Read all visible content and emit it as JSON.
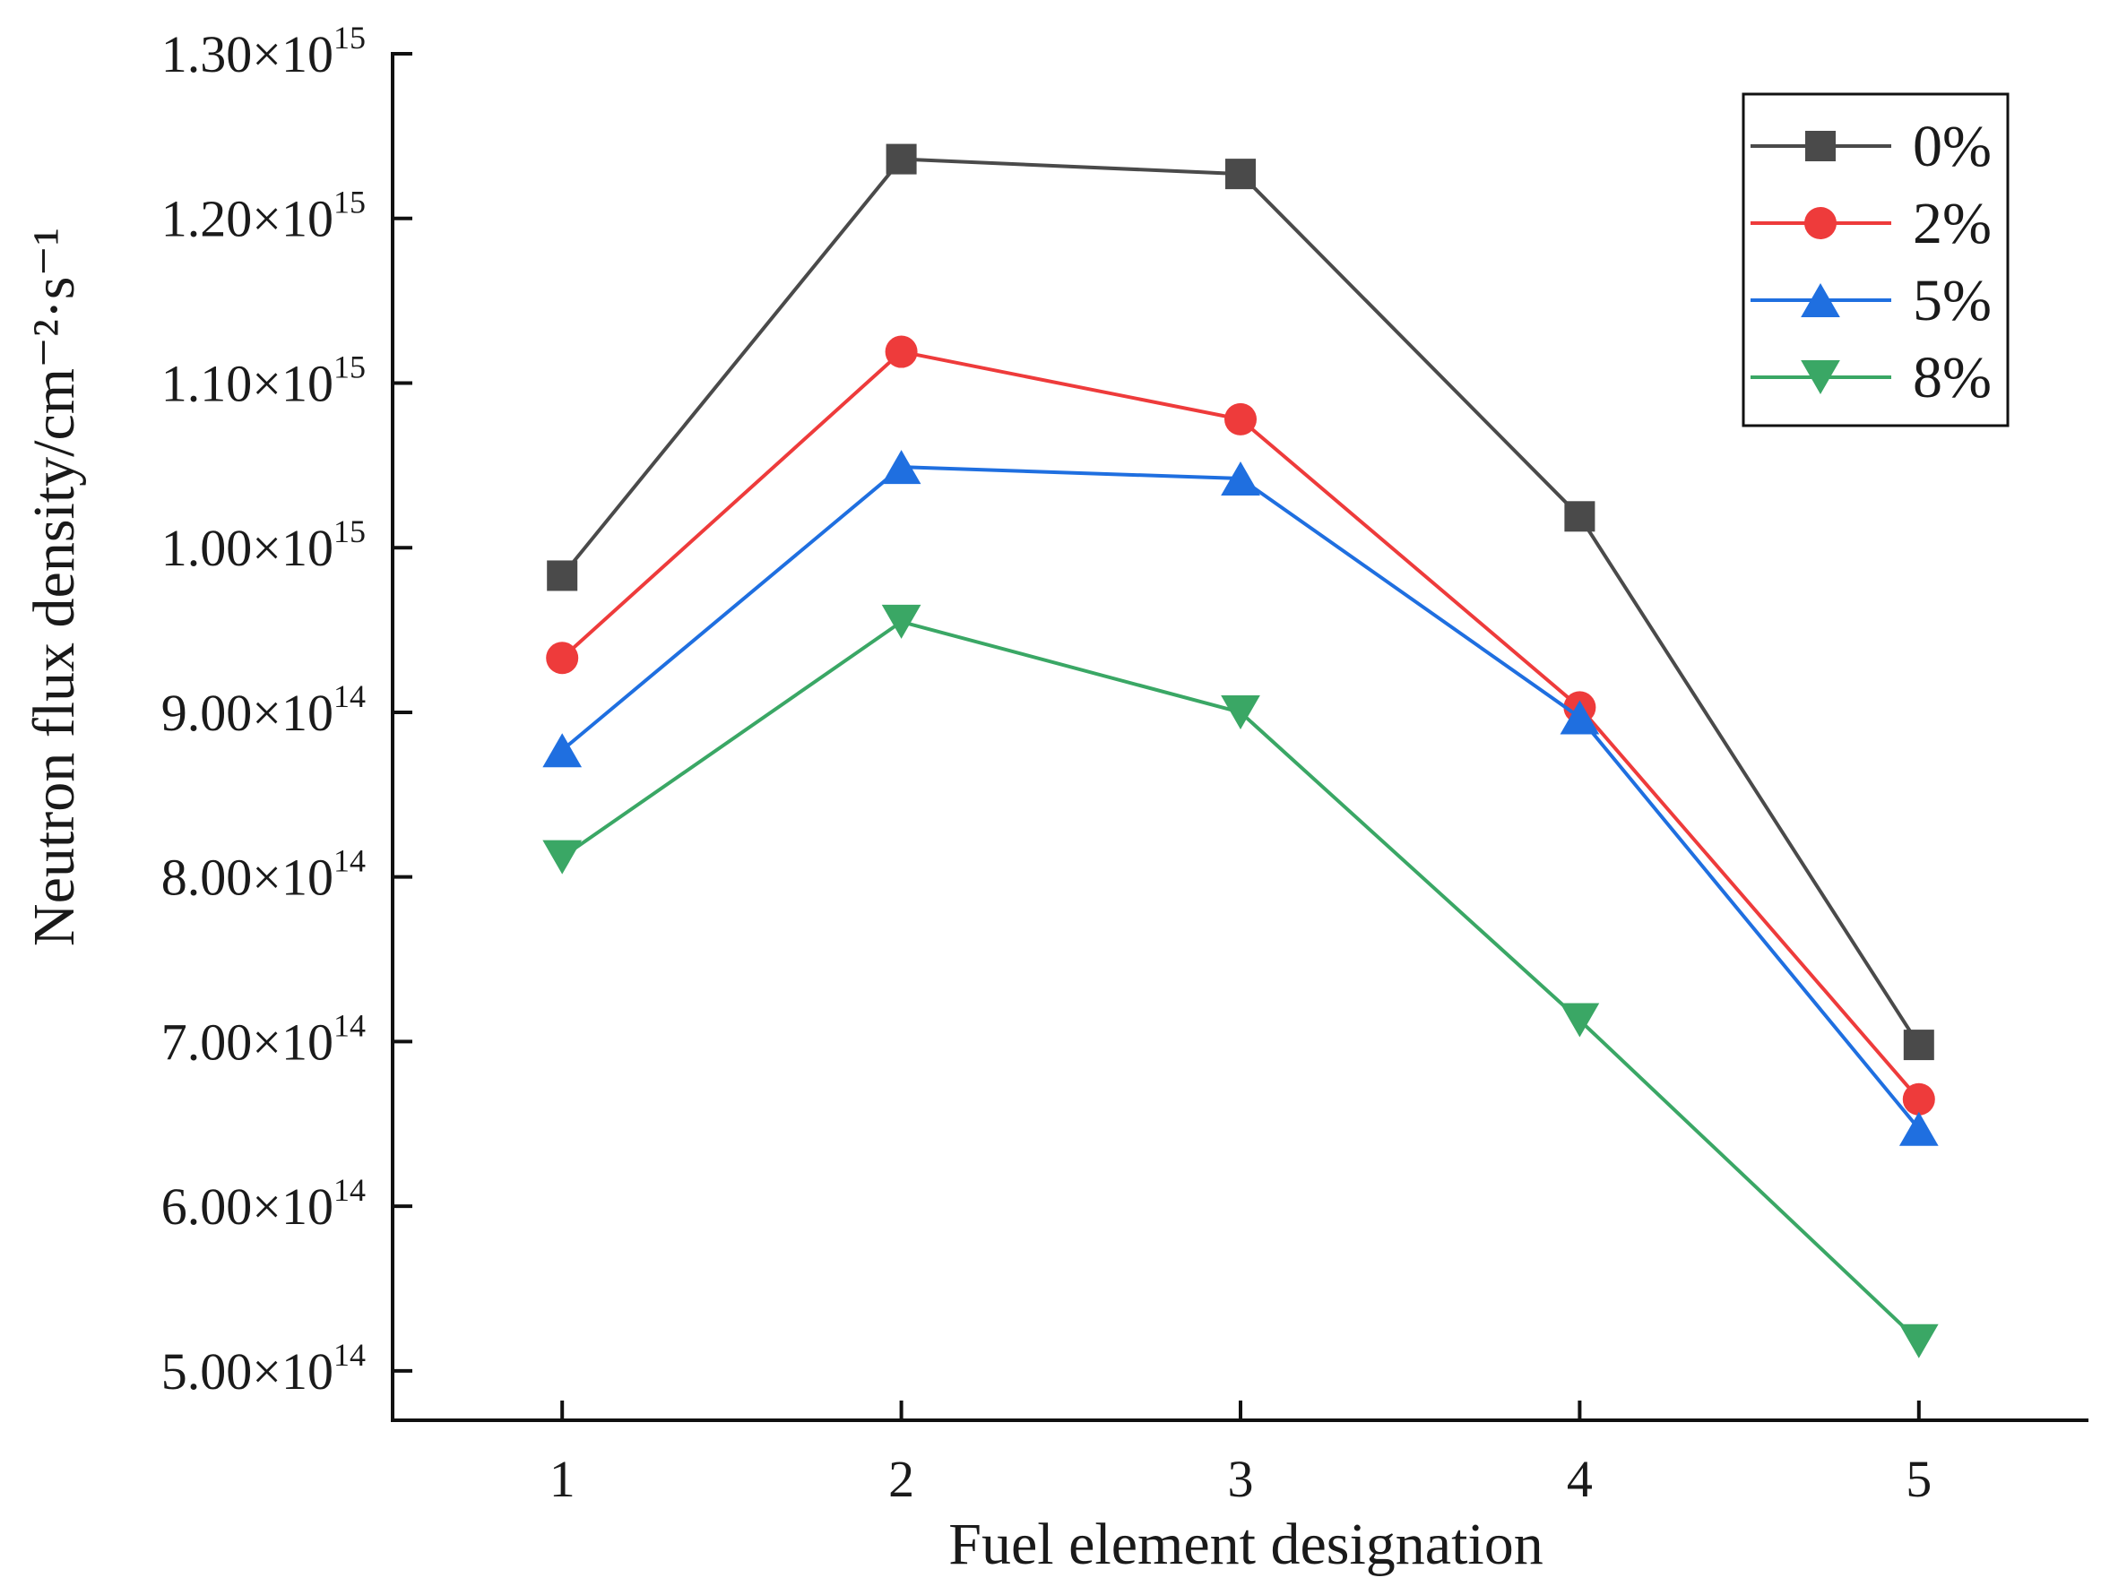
{
  "chart_data": {
    "type": "line",
    "title": "",
    "xlabel": "Fuel element designation",
    "ylabel": "Neutron flux density/cm⁻²·s⁻¹",
    "categories": [
      "1",
      "2",
      "3",
      "4",
      "5"
    ],
    "x": [
      1,
      2,
      3,
      4,
      5
    ],
    "xlim": [
      0.5,
      5.5
    ],
    "ylim": [
      470000000000000.0,
      1300000000000000.0
    ],
    "grid": false,
    "legend_position": "top-right",
    "y_ticks": [
      {
        "value": 500000000000000.0,
        "mantissa": "5.00×10",
        "exponent": "14"
      },
      {
        "value": 600000000000000.0,
        "mantissa": "6.00×10",
        "exponent": "14"
      },
      {
        "value": 700000000000000.0,
        "mantissa": "7.00×10",
        "exponent": "14"
      },
      {
        "value": 800000000000000.0,
        "mantissa": "8.00×10",
        "exponent": "14"
      },
      {
        "value": 900000000000000.0,
        "mantissa": "9.00×10",
        "exponent": "14"
      },
      {
        "value": 1000000000000000.0,
        "mantissa": "1.00×10",
        "exponent": "15"
      },
      {
        "value": 1100000000000000.0,
        "mantissa": "1.10×10",
        "exponent": "15"
      },
      {
        "value": 1200000000000000.0,
        "mantissa": "1.20×10",
        "exponent": "15"
      },
      {
        "value": 1300000000000000.0,
        "mantissa": "1.30×10",
        "exponent": "15"
      }
    ],
    "series": [
      {
        "name": "0%",
        "color": "#4a4a4a",
        "marker": "square",
        "values": [
          983000000000000.0,
          1236000000000000.0,
          1227000000000000.0,
          1019000000000000.0,
          698000000000000.0
        ]
      },
      {
        "name": "2%",
        "color": "#ee3b3b",
        "marker": "circle",
        "values": [
          933000000000000.0,
          1119000000000000.0,
          1078000000000000.0,
          903000000000000.0,
          665000000000000.0
        ]
      },
      {
        "name": "5%",
        "color": "#1f6fe0",
        "marker": "triangle-up",
        "values": [
          877000000000000.0,
          1049000000000000.0,
          1042000000000000.0,
          897000000000000.0,
          647000000000000.0
        ]
      },
      {
        "name": "8%",
        "color": "#3aa765",
        "marker": "triangle-down",
        "values": [
          812000000000000.0,
          955000000000000.0,
          900000000000000.0,
          713000000000000.0,
          518000000000000.0
        ]
      }
    ]
  }
}
